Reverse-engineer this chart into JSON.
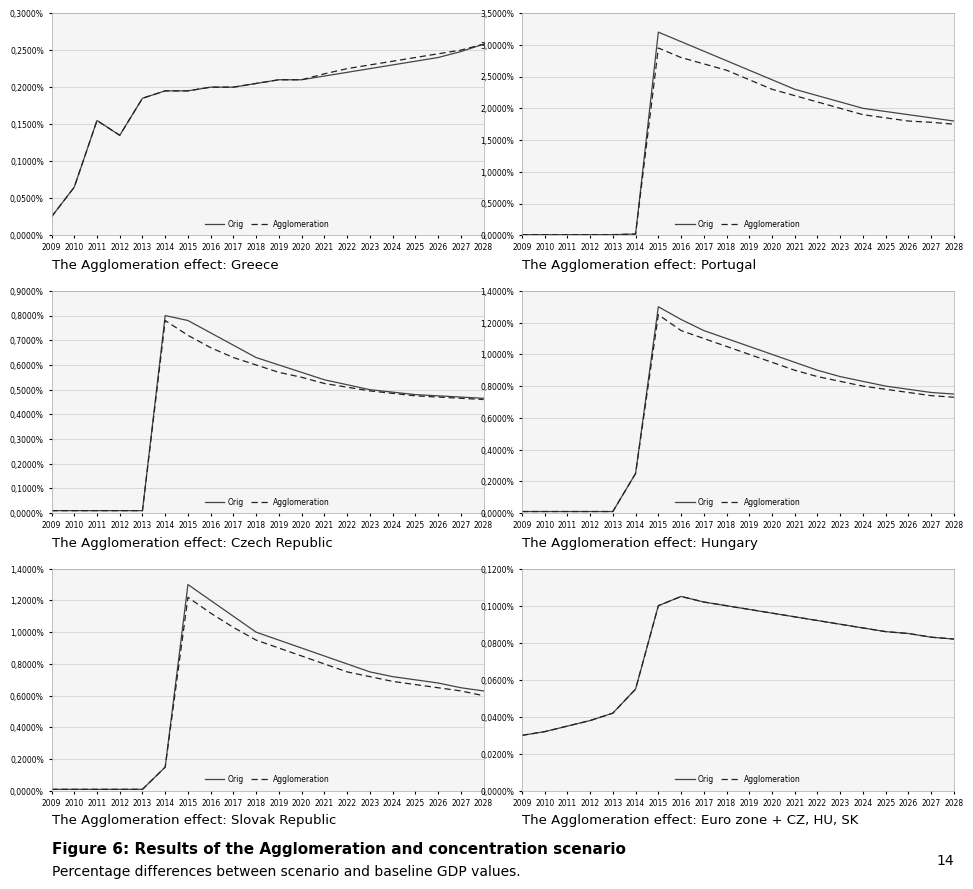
{
  "years": [
    2009,
    2010,
    2011,
    2012,
    2013,
    2014,
    2015,
    2016,
    2017,
    2018,
    2019,
    2020,
    2021,
    2022,
    2023,
    2024,
    2025,
    2026,
    2027,
    2028
  ],
  "charts": [
    {
      "title": "The Agglomeration effect: Greece",
      "ytick_labels": [
        "0,0000%",
        "0,0500%",
        "0,1000%",
        "0,1500%",
        "0,2000%",
        "0,2500%",
        "0,3000%"
      ],
      "ylim": [
        0.0,
        0.003
      ],
      "ytick_vals": [
        0.0,
        0.0005,
        0.001,
        0.0015,
        0.002,
        0.0025,
        0.003
      ],
      "orig": [
        0.00025,
        0.00065,
        0.00155,
        0.00135,
        0.00185,
        0.00195,
        0.00195,
        0.002,
        0.002,
        0.00205,
        0.0021,
        0.0021,
        0.00215,
        0.0022,
        0.00225,
        0.0023,
        0.00235,
        0.0024,
        0.00248,
        0.00258
      ],
      "aggl": [
        0.00025,
        0.00065,
        0.00155,
        0.00135,
        0.00185,
        0.00195,
        0.00195,
        0.002,
        0.002,
        0.00205,
        0.0021,
        0.0021,
        0.00218,
        0.00225,
        0.0023,
        0.00235,
        0.0024,
        0.00245,
        0.0025,
        0.00258
      ]
    },
    {
      "title": "The Agglomeration effect: Portugal",
      "ytick_labels": [
        "0,0000%",
        "0,5000%",
        "1,0000%",
        "1,5000%",
        "2,0000%",
        "2,5000%",
        "3,0000%",
        "3,5000%"
      ],
      "ylim": [
        0.0,
        0.035
      ],
      "ytick_vals": [
        0.0,
        0.005,
        0.01,
        0.015,
        0.02,
        0.025,
        0.03,
        0.035
      ],
      "orig": [
        0.0001,
        0.0001,
        0.0001,
        0.0001,
        0.0001,
        0.0002,
        0.032,
        0.0305,
        0.029,
        0.0275,
        0.026,
        0.0245,
        0.023,
        0.022,
        0.021,
        0.02,
        0.0195,
        0.019,
        0.0185,
        0.018
      ],
      "aggl": [
        0.0001,
        0.0001,
        0.0001,
        0.0001,
        0.0001,
        0.0002,
        0.0295,
        0.028,
        0.027,
        0.026,
        0.0245,
        0.023,
        0.022,
        0.021,
        0.02,
        0.019,
        0.0185,
        0.018,
        0.0178,
        0.0175
      ]
    },
    {
      "title": "The Agglomeration effect: Czech Republic",
      "ytick_labels": [
        "0,0000%",
        "0,1000%",
        "0,2000%",
        "0,3000%",
        "0,4000%",
        "0,5000%",
        "0,6000%",
        "0,7000%",
        "0,8000%",
        "0,9000%"
      ],
      "ylim": [
        0.0,
        0.009
      ],
      "ytick_vals": [
        0.0,
        0.001,
        0.002,
        0.003,
        0.004,
        0.005,
        0.006,
        0.007,
        0.008,
        0.009
      ],
      "orig": [
        0.0001,
        0.0001,
        0.0001,
        0.0001,
        0.0001,
        0.008,
        0.0078,
        0.0073,
        0.0068,
        0.0063,
        0.006,
        0.0057,
        0.0054,
        0.0052,
        0.005,
        0.0049,
        0.0048,
        0.00475,
        0.0047,
        0.00465
      ],
      "aggl": [
        0.0001,
        0.0001,
        0.0001,
        0.0001,
        0.0001,
        0.0078,
        0.0072,
        0.0067,
        0.0063,
        0.006,
        0.0057,
        0.0055,
        0.00525,
        0.0051,
        0.00495,
        0.00485,
        0.00475,
        0.0047,
        0.00465,
        0.0046
      ]
    },
    {
      "title": "The Agglomeration effect: Hungary",
      "ytick_labels": [
        "0,0000%",
        "0,2000%",
        "0,4000%",
        "0,6000%",
        "0,8000%",
        "1,0000%",
        "1,2000%",
        "1,4000%"
      ],
      "ylim": [
        0.0,
        0.014
      ],
      "ytick_vals": [
        0.0,
        0.002,
        0.004,
        0.006,
        0.008,
        0.01,
        0.012,
        0.014
      ],
      "orig": [
        0.0001,
        0.0001,
        0.0001,
        0.0001,
        0.0001,
        0.0025,
        0.013,
        0.0122,
        0.0115,
        0.011,
        0.0105,
        0.01,
        0.0095,
        0.009,
        0.0086,
        0.0083,
        0.008,
        0.0078,
        0.0076,
        0.0075
      ],
      "aggl": [
        0.0001,
        0.0001,
        0.0001,
        0.0001,
        0.0001,
        0.0025,
        0.0125,
        0.0115,
        0.011,
        0.0105,
        0.01,
        0.0095,
        0.009,
        0.0086,
        0.0083,
        0.008,
        0.0078,
        0.0076,
        0.0074,
        0.0073
      ]
    },
    {
      "title": "The Agglomeration effect: Slovak Republic",
      "ytick_labels": [
        "0,0000%",
        "0,2000%",
        "0,4000%",
        "0,6000%",
        "0,8000%",
        "1,0000%",
        "1,2000%",
        "1,4000%"
      ],
      "ylim": [
        0.0,
        0.014
      ],
      "ytick_vals": [
        0.0,
        0.002,
        0.004,
        0.006,
        0.008,
        0.01,
        0.012,
        0.014
      ],
      "orig": [
        0.0001,
        0.0001,
        0.0001,
        0.0001,
        0.0001,
        0.0015,
        0.013,
        0.012,
        0.011,
        0.01,
        0.0095,
        0.009,
        0.0085,
        0.008,
        0.0075,
        0.0072,
        0.007,
        0.0068,
        0.0065,
        0.0063
      ],
      "aggl": [
        0.0001,
        0.0001,
        0.0001,
        0.0001,
        0.0001,
        0.0015,
        0.0122,
        0.0112,
        0.0103,
        0.0095,
        0.009,
        0.0085,
        0.008,
        0.0075,
        0.0072,
        0.0069,
        0.0067,
        0.0065,
        0.0063,
        0.006
      ]
    },
    {
      "title": "The Agglomeration effect: Euro zone + CZ, HU, SK",
      "ytick_labels": [
        "0,0000%",
        "0,0200%",
        "0,0400%",
        "0,0600%",
        "0,0800%",
        "0,1000%",
        "0,1200%"
      ],
      "ylim": [
        0.0,
        0.0012
      ],
      "ytick_vals": [
        0.0,
        0.0002,
        0.0004,
        0.0006,
        0.0008,
        0.001,
        0.0012
      ],
      "orig": [
        0.0003,
        0.00032,
        0.00035,
        0.00038,
        0.00042,
        0.00055,
        0.001,
        0.00105,
        0.00102,
        0.001,
        0.00098,
        0.00096,
        0.00094,
        0.00092,
        0.0009,
        0.00088,
        0.00086,
        0.00085,
        0.00083,
        0.00082
      ],
      "aggl": [
        0.0003,
        0.00032,
        0.00035,
        0.00038,
        0.00042,
        0.00055,
        0.001,
        0.00105,
        0.00102,
        0.001,
        0.00098,
        0.00096,
        0.00094,
        0.00092,
        0.0009,
        0.00088,
        0.00086,
        0.00085,
        0.00083,
        0.00082
      ]
    }
  ],
  "figure_caption": "Figure 6: Results of the Agglomeration and concentration scenario",
  "figure_subcaption": "Percentage differences between scenario and baseline GDP values.",
  "page_number": "14",
  "legend_orig": "Orig",
  "legend_aggl": "Agglomeration",
  "line_color_orig": "#444444",
  "line_color_aggl": "#222222",
  "background_color": "#ffffff",
  "chart_bg": "#f5f5f5",
  "grid_color": "#cccccc"
}
